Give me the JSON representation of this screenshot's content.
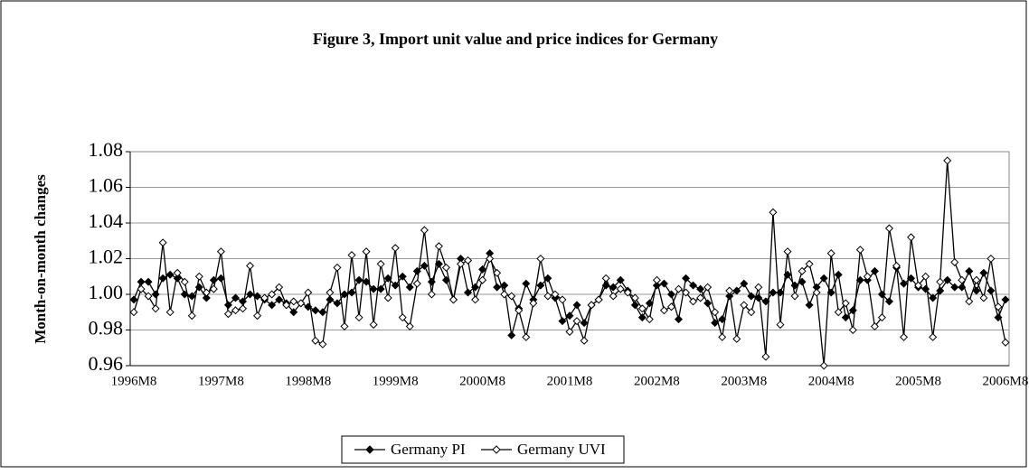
{
  "chart_data": {
    "type": "line",
    "title": "Figure 3, Import unit value and price indices for Germany",
    "y_label": "Month-on-month changes",
    "categories": [
      "1996M8",
      null,
      null,
      null,
      null,
      null,
      null,
      null,
      null,
      null,
      null,
      null,
      "1997M8",
      null,
      null,
      null,
      null,
      null,
      null,
      null,
      null,
      null,
      null,
      null,
      "1998M8",
      null,
      null,
      null,
      null,
      null,
      null,
      null,
      null,
      null,
      null,
      null,
      "1999M8",
      null,
      null,
      null,
      null,
      null,
      null,
      null,
      null,
      null,
      null,
      null,
      "2000M8",
      null,
      null,
      null,
      null,
      null,
      null,
      null,
      null,
      null,
      null,
      null,
      "2001M8",
      null,
      null,
      null,
      null,
      null,
      null,
      null,
      null,
      null,
      null,
      null,
      "2002M8",
      null,
      null,
      null,
      null,
      null,
      null,
      null,
      null,
      null,
      null,
      null,
      "2003M8",
      null,
      null,
      null,
      null,
      null,
      null,
      null,
      null,
      null,
      null,
      null,
      "2004M8",
      null,
      null,
      null,
      null,
      null,
      null,
      null,
      null,
      null,
      null,
      null,
      "2005M8",
      null,
      null,
      null,
      null,
      null,
      null,
      null,
      null,
      null,
      null,
      null,
      "2006M8"
    ],
    "series": [
      {
        "name": "Germany PI",
        "color": "#000000",
        "marker": "filled-diamond",
        "values": [
          0.997,
          1.007,
          1.007,
          1.0,
          1.009,
          1.011,
          1.009,
          1.0,
          0.999,
          1.004,
          0.998,
          1.008,
          1.009,
          0.994,
          0.998,
          0.996,
          1.0,
          0.999,
          0.997,
          0.994,
          0.997,
          0.995,
          0.99,
          0.995,
          0.993,
          0.991,
          0.99,
          0.997,
          0.995,
          1.0,
          1.001,
          1.008,
          1.007,
          1.003,
          1.003,
          1.009,
          1.005,
          1.01,
          1.004,
          1.013,
          1.016,
          1.007,
          1.017,
          1.008,
          0.997,
          1.02,
          1.001,
          1.004,
          1.014,
          1.023,
          1.004,
          1.005,
          0.977,
          0.992,
          1.006,
          0.997,
          1.005,
          1.009,
          0.998,
          0.985,
          0.988,
          0.994,
          0.984,
          0.994,
          0.997,
          1.005,
          1.004,
          1.008,
          1.002,
          0.994,
          0.987,
          0.995,
          1.005,
          1.006,
          1.0,
          0.986,
          1.009,
          1.005,
          1.003,
          0.995,
          0.984,
          0.986,
          0.999,
          1.002,
          1.006,
          0.999,
          0.998,
          0.996,
          1.001,
          1.001,
          1.011,
          1.005,
          1.007,
          0.994,
          1.004,
          1.009,
          1.001,
          1.011,
          0.987,
          0.991,
          1.008,
          1.008,
          1.013,
          1.0,
          0.996,
          1.015,
          1.006,
          1.009,
          1.004,
          1.003,
          0.998,
          1.002,
          1.008,
          1.004,
          1.004,
          1.013,
          1.002,
          1.012,
          1.002,
          0.987,
          0.997
        ]
      },
      {
        "name": "Germany UVI",
        "color": "#000000",
        "marker": "open-diamond",
        "values": [
          0.99,
          1.003,
          0.999,
          0.992,
          1.029,
          0.99,
          1.012,
          1.007,
          0.988,
          1.01,
          1.001,
          1.003,
          1.024,
          0.989,
          0.991,
          0.992,
          1.016,
          0.988,
          0.998,
          1.0,
          1.004,
          0.994,
          0.996,
          0.995,
          1.001,
          0.974,
          0.972,
          1.001,
          1.015,
          0.982,
          1.022,
          0.987,
          1.024,
          0.983,
          1.017,
          0.998,
          1.026,
          0.987,
          0.982,
          1.006,
          1.036,
          1.0,
          1.027,
          1.015,
          0.997,
          1.017,
          1.019,
          0.997,
          1.008,
          1.02,
          1.012,
          1.0,
          0.999,
          0.991,
          0.976,
          0.995,
          1.02,
          0.999,
          1.0,
          0.997,
          0.979,
          0.985,
          0.974,
          0.994,
          0.997,
          1.009,
          0.999,
          1.003,
          1.001,
          0.998,
          0.992,
          0.986,
          1.008,
          0.991,
          0.993,
          1.003,
          1.001,
          0.996,
          0.998,
          1.004,
          0.99,
          0.976,
          1.002,
          0.975,
          0.994,
          0.99,
          1.004,
          0.965,
          1.046,
          0.983,
          1.024,
          0.999,
          1.013,
          1.017,
          1.001,
          0.96,
          1.023,
          0.99,
          0.995,
          0.98,
          1.025,
          1.01,
          0.982,
          0.987,
          1.037,
          1.016,
          0.976,
          1.032,
          1.005,
          1.01,
          0.976,
          1.007,
          1.075,
          1.018,
          1.008,
          0.996,
          1.008,
          0.998,
          1.02,
          0.993,
          0.973
        ]
      }
    ],
    "ylim": [
      0.96,
      1.08
    ],
    "yticks": [
      0.96,
      0.98,
      {
        "value": 1,
        "label": "1.00"
      },
      1.02,
      1.04,
      1.06,
      1.08
    ],
    "grid": true,
    "legend": "bottom"
  }
}
